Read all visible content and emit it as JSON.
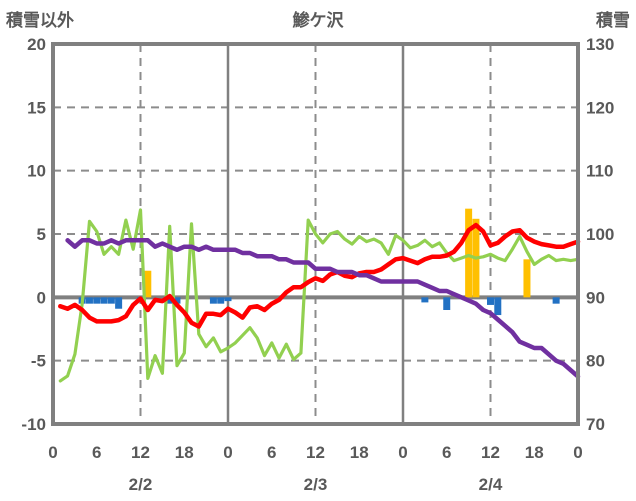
{
  "chart_data": {
    "type": "line",
    "title": "鯵ケ沢",
    "left_axis": {
      "label": "積雪以外",
      "min": -10,
      "max": 20,
      "ticks": [
        20,
        15,
        10,
        5,
        0,
        -5,
        -10
      ]
    },
    "right_axis": {
      "label": "積雪",
      "min": 70,
      "max": 130,
      "ticks": [
        130,
        120,
        110,
        100,
        90,
        80,
        70
      ]
    },
    "x_axis": {
      "unit": "hour",
      "min": 0,
      "max": 72,
      "tick_hours": [
        0,
        6,
        12,
        18,
        24,
        30,
        36,
        42,
        48,
        54,
        60,
        66,
        72
      ],
      "tick_labels": [
        "0",
        "6",
        "12",
        "18",
        "0",
        "6",
        "12",
        "18",
        "0",
        "6",
        "12",
        "18",
        "0"
      ],
      "date_labels": [
        {
          "label": "2/2",
          "hour": 12
        },
        {
          "label": "2/3",
          "hour": 36
        },
        {
          "label": "2/4",
          "hour": 60
        }
      ]
    },
    "gridlines": {
      "horizontal_dashed": [
        15,
        10,
        5,
        -5
      ],
      "zero_line": 0,
      "vertical_dashed_hours": [
        12,
        36,
        60
      ],
      "vertical_solid_hours": [
        24,
        48
      ]
    },
    "colors": {
      "snow_depth": "#7030A0",
      "red_series": "#FF0000",
      "green_series": "#92D050",
      "orange_bars": "#FFC000",
      "blue_bars": "#2271C3",
      "frame": "#808080",
      "grid": "#8C8C8C",
      "text": "#595959"
    },
    "series": [
      {
        "name": "blue-bars",
        "type": "bar",
        "axis": "left",
        "color": "#2271C3",
        "points": [
          [
            4,
            -0.5
          ],
          [
            5,
            -0.5
          ],
          [
            6,
            -0.5
          ],
          [
            7,
            -0.5
          ],
          [
            8,
            -0.5
          ],
          [
            9,
            -0.9
          ],
          [
            12,
            -0.4
          ],
          [
            16,
            -0.5
          ],
          [
            17,
            -0.5
          ],
          [
            22,
            -0.5
          ],
          [
            23,
            -0.5
          ],
          [
            24,
            -0.3
          ],
          [
            51,
            -0.4
          ],
          [
            54,
            -1.0
          ],
          [
            60,
            -0.6
          ],
          [
            61,
            -1.4
          ],
          [
            69,
            -0.5
          ]
        ]
      },
      {
        "name": "orange-bars",
        "type": "bar",
        "axis": "left",
        "color": "#FFC000",
        "points": [
          [
            13,
            2.1
          ],
          [
            57,
            7.0
          ],
          [
            58,
            6.2
          ],
          [
            65,
            3.0
          ]
        ]
      },
      {
        "name": "green-line",
        "type": "line",
        "axis": "left",
        "color": "#92D050",
        "width": 3.2,
        "start_hour": 1,
        "values": [
          -6.6,
          -6.2,
          -4.5,
          -0.5,
          6.0,
          5.2,
          3.4,
          4.0,
          3.4,
          6.1,
          3.8,
          6.9,
          -6.4,
          -4.6,
          -6.0,
          5.6,
          -5.4,
          -4.4,
          5.8,
          -2.9,
          -3.9,
          -3.2,
          -4.3,
          -4.0,
          -3.6,
          -3.0,
          -2.4,
          -3.2,
          -4.6,
          -3.6,
          -4.8,
          -3.7,
          -4.9,
          -4.4,
          6.1,
          5.0,
          4.3,
          5.0,
          5.2,
          4.6,
          4.2,
          4.8,
          4.4,
          4.6,
          4.3,
          3.4,
          4.9,
          4.5,
          3.9,
          4.1,
          4.5,
          4.0,
          4.3,
          3.5,
          2.9,
          3.1,
          3.3,
          3.1,
          3.2,
          3.4,
          3.1,
          2.9,
          3.8,
          4.8,
          3.6,
          2.6,
          3.0,
          3.3,
          2.9,
          3.0,
          2.9,
          3.0
        ]
      },
      {
        "name": "red-line",
        "type": "line",
        "axis": "left",
        "color": "#FF0000",
        "width": 4.5,
        "start_hour": 1,
        "values": [
          -0.7,
          -0.9,
          -0.6,
          -1.0,
          -1.6,
          -1.9,
          -1.9,
          -1.9,
          -1.8,
          -1.5,
          -0.6,
          -0.1,
          -1.0,
          -0.2,
          -0.3,
          0.1,
          -0.6,
          -1.2,
          -2.0,
          -2.3,
          -1.3,
          -1.3,
          -1.4,
          -0.9,
          -1.2,
          -1.6,
          -0.8,
          -0.7,
          -1.0,
          -0.5,
          -0.2,
          0.4,
          0.8,
          0.8,
          1.2,
          1.5,
          1.3,
          1.8,
          2.0,
          1.7,
          1.6,
          1.9,
          2.0,
          2.0,
          2.2,
          2.6,
          3.0,
          3.1,
          2.9,
          2.7,
          3.0,
          3.2,
          3.2,
          3.3,
          3.6,
          4.3,
          5.3,
          5.7,
          5.2,
          4.1,
          4.3,
          4.8,
          5.2,
          5.3,
          4.7,
          4.4,
          4.2,
          4.1,
          4.0,
          4.0,
          4.2,
          4.4
        ]
      },
      {
        "name": "snow-depth-line",
        "type": "line",
        "axis": "right",
        "color": "#7030A0",
        "width": 4.5,
        "start_hour": 2,
        "values": [
          99,
          98,
          99,
          99,
          98.5,
          98.5,
          99,
          98.5,
          99,
          99,
          99,
          99,
          98,
          98.5,
          98,
          97.5,
          98,
          98,
          97.5,
          98,
          97.5,
          97.5,
          97.5,
          97.5,
          97,
          97,
          96.5,
          96.5,
          96.5,
          96,
          96,
          95.5,
          95.5,
          95.5,
          94.5,
          94.5,
          94.5,
          94,
          94,
          94,
          93.5,
          93.5,
          93,
          92.5,
          92.5,
          92.5,
          92.5,
          92.5,
          92.5,
          92,
          91.5,
          91,
          91,
          90.5,
          90,
          89.5,
          89,
          88,
          87.5,
          86.5,
          85.5,
          84.5,
          83,
          82.5,
          82,
          82,
          81,
          80,
          79.5,
          78.5,
          77.5
        ]
      }
    ]
  }
}
